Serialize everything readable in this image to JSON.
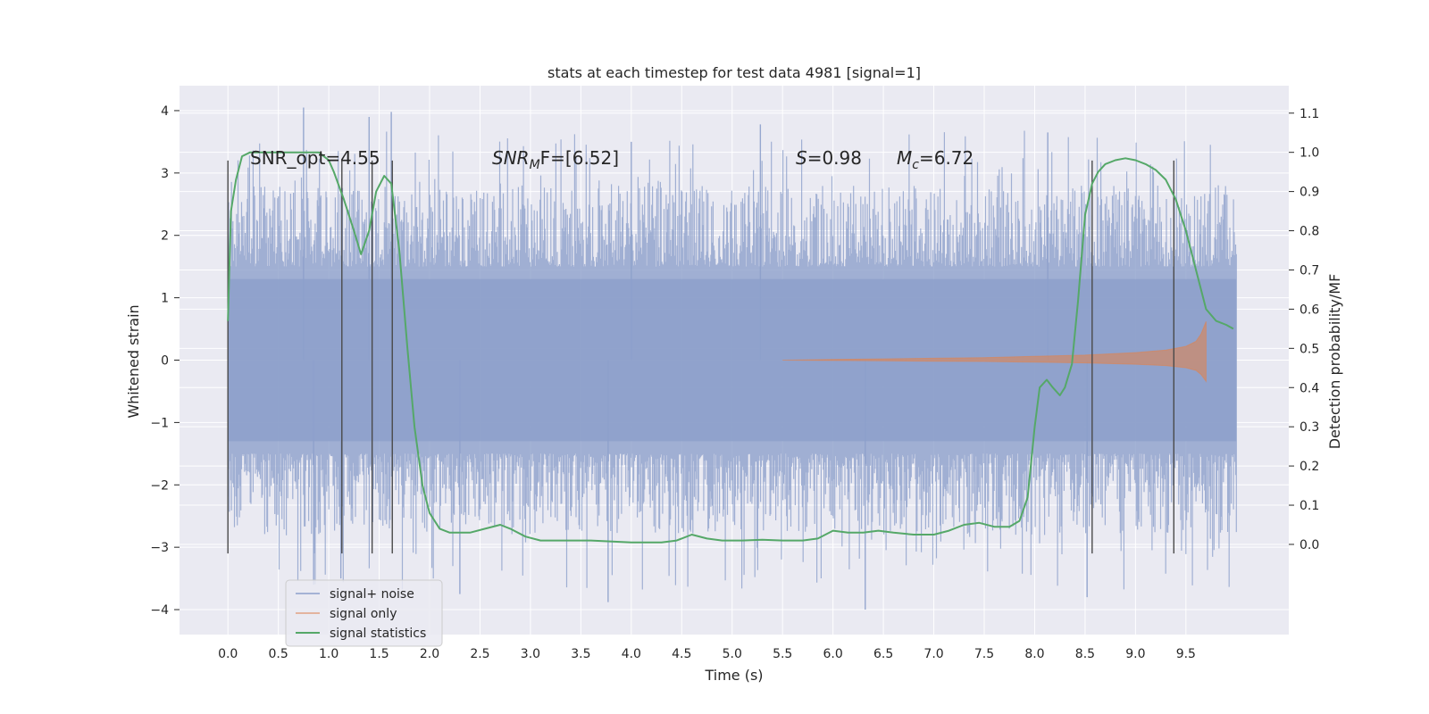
{
  "chart_data": {
    "type": "line",
    "title": "stats at each timestep for test data 4981 [signal=1]",
    "xlabel": "Time (s)",
    "ylabel": "Whitened strain",
    "ylabel_right": "Detection probability/MF",
    "xlim": [
      -0.48,
      10.52
    ],
    "ylim": [
      -4.4,
      4.4
    ],
    "ylim_right": [
      -0.23,
      1.17
    ],
    "x_ticks": [
      "0.0",
      "0.5",
      "1.0",
      "1.5",
      "2.0",
      "2.5",
      "3.0",
      "3.5",
      "4.0",
      "4.5",
      "5.0",
      "5.5",
      "6.0",
      "6.5",
      "7.0",
      "7.5",
      "8.0",
      "8.5",
      "9.0",
      "9.5"
    ],
    "y_ticks": [
      "4",
      "3",
      "2",
      "1",
      "0",
      "−1",
      "−2",
      "−3",
      "−4"
    ],
    "y_right_ticks": [
      "1.1",
      "1.0",
      "0.9",
      "0.8",
      "0.7",
      "0.6",
      "0.5",
      "0.4",
      "0.3",
      "0.2",
      "0.1",
      "0.0"
    ],
    "grid": true,
    "legend_position": "lower-left",
    "legend": [
      "signal+ noise",
      "signal only",
      "signal statistics"
    ],
    "colors": {
      "background": "#eaeaf2",
      "noise": "#8da0cb",
      "signal": "#dd8452",
      "stats": "#55a868",
      "vlines": "#4a4a4a"
    },
    "annotations": {
      "snr_opt": "SNR_opt=4.55",
      "snr_mf_base": "SNR",
      "snr_mf_sub": "M",
      "snr_mf_rest": "F=[6.52]",
      "s_base": "S",
      "s_rest": "=0.98",
      "mc_base": "M",
      "mc_sub": "c",
      "mc_rest": "=6.72"
    },
    "noise_band": {
      "x_start": 0.0,
      "x_end": 10.0,
      "core_amplitude": 1.3,
      "peak_amplitude_max": 4.05,
      "peak_amplitude_min": -4.0
    },
    "signal_only": {
      "x": [
        5.5,
        6.0,
        6.5,
        7.0,
        7.5,
        8.0,
        8.5,
        9.0,
        9.3,
        9.5,
        9.6,
        9.65,
        9.7
      ],
      "amplitude": [
        0.0,
        0.01,
        0.02,
        0.03,
        0.04,
        0.06,
        0.08,
        0.12,
        0.16,
        0.22,
        0.3,
        0.42,
        0.62
      ]
    },
    "signal_statistics": {
      "x": [
        0.0,
        0.03,
        0.08,
        0.14,
        0.22,
        0.35,
        0.5,
        0.7,
        0.9,
        1.0,
        1.05,
        1.15,
        1.25,
        1.32,
        1.4,
        1.47,
        1.55,
        1.62,
        1.7,
        1.78,
        1.85,
        1.93,
        2.0,
        2.1,
        2.2,
        2.3,
        2.4,
        2.55,
        2.7,
        2.8,
        2.95,
        3.1,
        3.3,
        3.6,
        4.0,
        4.3,
        4.45,
        4.6,
        4.75,
        4.9,
        5.1,
        5.3,
        5.5,
        5.7,
        5.85,
        6.0,
        6.15,
        6.3,
        6.45,
        6.6,
        6.8,
        7.0,
        7.15,
        7.3,
        7.45,
        7.6,
        7.75,
        7.85,
        7.93,
        8.0,
        8.05,
        8.12,
        8.18,
        8.25,
        8.3,
        8.37,
        8.43,
        8.5,
        8.57,
        8.63,
        8.7,
        8.8,
        8.9,
        9.0,
        9.1,
        9.2,
        9.3,
        9.4,
        9.5,
        9.6,
        9.7,
        9.8,
        9.9,
        9.97
      ],
      "y": [
        0.57,
        0.85,
        0.93,
        0.99,
        1.0,
        1.0,
        1.0,
        1.0,
        1.0,
        0.98,
        0.95,
        0.88,
        0.8,
        0.74,
        0.8,
        0.9,
        0.94,
        0.92,
        0.75,
        0.5,
        0.3,
        0.15,
        0.08,
        0.04,
        0.03,
        0.03,
        0.03,
        0.04,
        0.05,
        0.04,
        0.02,
        0.01,
        0.01,
        0.01,
        0.005,
        0.005,
        0.01,
        0.025,
        0.015,
        0.01,
        0.01,
        0.012,
        0.01,
        0.01,
        0.015,
        0.035,
        0.03,
        0.03,
        0.035,
        0.03,
        0.025,
        0.025,
        0.035,
        0.05,
        0.055,
        0.045,
        0.045,
        0.06,
        0.12,
        0.3,
        0.4,
        0.42,
        0.4,
        0.38,
        0.4,
        0.46,
        0.62,
        0.84,
        0.92,
        0.95,
        0.97,
        0.98,
        0.985,
        0.98,
        0.97,
        0.955,
        0.93,
        0.88,
        0.8,
        0.7,
        0.6,
        0.57,
        0.56,
        0.55
      ]
    },
    "vertical_lines_x": [
      0.0,
      1.13,
      1.43,
      1.63,
      8.57,
      9.38
    ],
    "vertical_lines_range": [
      -3.1,
      3.2
    ]
  }
}
